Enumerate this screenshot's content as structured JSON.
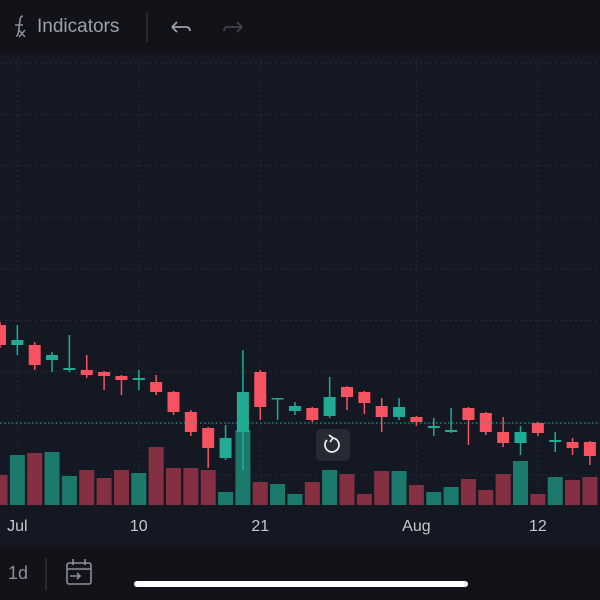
{
  "toolbar": {
    "indicators": "Indicators"
  },
  "bottom_bar": {
    "interval": "1d"
  },
  "chart_data": {
    "type": "candlestick",
    "categories": [
      null,
      "Jul",
      null,
      null,
      null,
      null,
      null,
      null,
      "10",
      null,
      null,
      null,
      null,
      null,
      null,
      "21",
      null,
      null,
      null,
      null,
      null,
      null,
      null,
      null,
      "Aug",
      null,
      null,
      null,
      null,
      null,
      null,
      "12",
      null,
      null,
      null
    ],
    "open": [
      180,
      160,
      160,
      145,
      135,
      135,
      133,
      129,
      125,
      123,
      113,
      93,
      77,
      47,
      73,
      133,
      106,
      94,
      97,
      89,
      118,
      113,
      99,
      88,
      88,
      77,
      73,
      97,
      92,
      73,
      62,
      82,
      63,
      63,
      63
    ],
    "high": [
      183,
      180,
      163,
      153,
      170,
      150,
      134,
      130,
      135,
      130,
      114,
      95,
      78,
      80,
      155,
      135,
      107,
      103,
      98,
      128,
      119,
      114,
      107,
      107,
      89,
      87,
      97,
      98,
      93,
      88,
      79,
      83,
      73,
      67,
      64
    ],
    "low": [
      157,
      150,
      135,
      133,
      133,
      127,
      115,
      110,
      115,
      110,
      90,
      69,
      37,
      45,
      35,
      85,
      85,
      90,
      83,
      87,
      95,
      91,
      73,
      85,
      79,
      69,
      72,
      60,
      70,
      58,
      50,
      69,
      53,
      50,
      40
    ],
    "close": [
      160,
      165,
      140,
      150,
      137,
      130,
      129,
      125,
      127,
      113,
      93,
      73,
      57,
      67,
      113,
      98,
      107,
      99,
      85,
      108,
      108,
      102,
      88,
      98,
      83,
      79,
      75,
      85,
      73,
      62,
      73,
      72,
      65,
      57,
      49
    ],
    "volume": [
      30,
      50,
      52,
      53,
      29,
      35,
      27,
      35,
      32,
      58,
      37,
      37,
      35,
      13,
      75,
      23,
      21,
      11,
      23,
      35,
      31,
      11,
      34,
      34,
      20,
      13,
      18,
      26,
      15,
      31,
      44,
      11,
      28,
      25,
      28
    ],
    "ylim": [
      0,
      445
    ],
    "volume_lim": [
      0,
      100
    ],
    "price_line": 82,
    "up_color": "#22ab94",
    "down_color": "#f7525f",
    "volume_up_color": "#1b7a6b",
    "volume_down_color": "#853042",
    "grid": true
  }
}
